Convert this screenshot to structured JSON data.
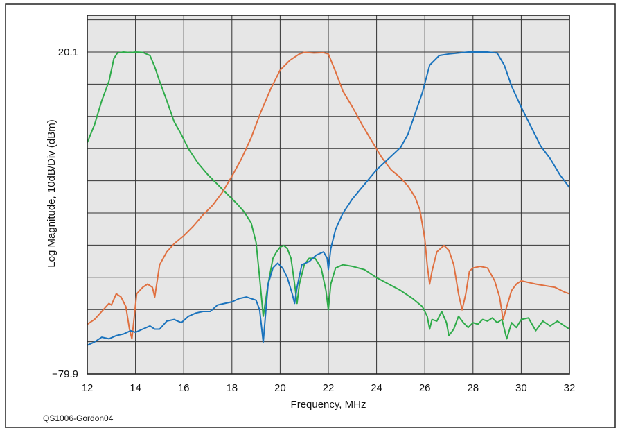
{
  "chart_data": {
    "type": "line",
    "title": "",
    "xlabel": "Frequency, MHz",
    "ylabel": "Log Magnitude, 10dB/Div (dBm)",
    "xlim": [
      12,
      32
    ],
    "ylim": [
      -79.9,
      20.1
    ],
    "x_ticks": [
      12,
      14,
      16,
      18,
      20,
      22,
      24,
      26,
      28,
      30,
      32
    ],
    "y_tick_labels": [
      "20.1",
      "−79.9"
    ],
    "y_tick_values": [
      20.1,
      -79.9
    ],
    "grid": true,
    "plot_background": "#e6e6e6",
    "series": [
      {
        "color": "#2eab49",
        "x": [
          12.0,
          12.3,
          12.6,
          12.9,
          13.1,
          13.25,
          13.5,
          13.8,
          14.0,
          14.3,
          14.6,
          14.8,
          15.0,
          15.3,
          15.6,
          15.9,
          16.2,
          16.6,
          17.0,
          17.4,
          17.8,
          18.2,
          18.5,
          18.8,
          19.0,
          19.15,
          19.3,
          19.5,
          19.7,
          19.85,
          20.0,
          20.15,
          20.3,
          20.45,
          20.6,
          20.7,
          20.8,
          21.0,
          21.2,
          21.45,
          21.7,
          21.9,
          22.0,
          22.1,
          22.3,
          22.6,
          23.0,
          23.5,
          24.0,
          24.5,
          25.0,
          25.5,
          25.9,
          26.1,
          26.2,
          26.3,
          26.5,
          26.7,
          26.9,
          27.0,
          27.2,
          27.4,
          27.6,
          27.8,
          28.0,
          28.2,
          28.4,
          28.6,
          28.8,
          29.0,
          29.2,
          29.4,
          29.6,
          29.8,
          30.0,
          30.3,
          30.6,
          30.9,
          31.2,
          31.5,
          31.8,
          32.0
        ],
        "values": [
          -8.0,
          -2.5,
          5.0,
          11.0,
          18.0,
          19.8,
          20.1,
          19.9,
          20.1,
          20.0,
          19.0,
          15.5,
          11.0,
          5.0,
          -1.5,
          -5.5,
          -10.0,
          -14.5,
          -18.0,
          -21.0,
          -24.0,
          -27.0,
          -29.5,
          -33.0,
          -39.0,
          -50.0,
          -62.0,
          -52.0,
          -44.0,
          -42.0,
          -40.5,
          -40.0,
          -41.0,
          -44.0,
          -52.0,
          -58.0,
          -52.0,
          -46.0,
          -44.0,
          -44.0,
          -47.0,
          -54.0,
          -60.0,
          -52.0,
          -47.0,
          -46.0,
          -46.5,
          -47.5,
          -50.0,
          -52.0,
          -54.0,
          -56.5,
          -59.0,
          -62.0,
          -66.0,
          -63.0,
          -63.5,
          -60.5,
          -64.0,
          -68.0,
          -66.0,
          -62.0,
          -64.0,
          -65.5,
          -64.0,
          -64.5,
          -63.0,
          -63.5,
          -62.5,
          -64.0,
          -63.0,
          -69.0,
          -64.0,
          -65.5,
          -63.0,
          -62.5,
          -66.5,
          -63.5,
          -65.0,
          -63.5,
          -65.0,
          -66.0
        ]
      },
      {
        "color": "#e07040",
        "x": [
          12.0,
          12.3,
          12.6,
          12.9,
          13.0,
          13.2,
          13.4,
          13.6,
          13.75,
          13.85,
          13.95,
          14.05,
          14.3,
          14.5,
          14.7,
          14.8,
          15.0,
          15.3,
          15.6,
          16.0,
          16.4,
          16.8,
          17.2,
          17.6,
          18.0,
          18.4,
          18.8,
          19.2,
          19.6,
          20.0,
          20.4,
          20.8,
          21.0,
          21.4,
          21.8,
          22.0,
          22.3,
          22.6,
          23.0,
          23.4,
          23.8,
          24.2,
          24.6,
          25.0,
          25.3,
          25.6,
          25.8,
          26.0,
          26.1,
          26.2,
          26.3,
          26.5,
          26.8,
          27.0,
          27.2,
          27.4,
          27.55,
          27.7,
          27.85,
          28.0,
          28.3,
          28.6,
          28.9,
          29.1,
          29.25,
          29.4,
          29.6,
          29.8,
          30.0,
          30.3,
          30.6,
          31.0,
          31.4,
          31.8,
          32.0
        ],
        "values": [
          -64.5,
          -63.0,
          -60.5,
          -58.0,
          -58.5,
          -55.0,
          -56.0,
          -59.0,
          -66.0,
          -69.0,
          -62.0,
          -55.0,
          -53.0,
          -52.0,
          -53.0,
          -56.0,
          -46.0,
          -42.0,
          -39.5,
          -37.0,
          -34.0,
          -30.5,
          -27.5,
          -23.5,
          -18.5,
          -13.0,
          -6.5,
          1.5,
          8.5,
          14.5,
          17.5,
          19.5,
          20.0,
          19.8,
          19.9,
          19.5,
          14.0,
          8.0,
          3.0,
          -2.5,
          -7.5,
          -12.5,
          -16.5,
          -19.0,
          -21.5,
          -25.0,
          -29.0,
          -38.0,
          -46.0,
          -52.0,
          -48.0,
          -42.0,
          -40.0,
          -41.5,
          -46.0,
          -55.0,
          -60.0,
          -55.0,
          -48.0,
          -47.0,
          -46.5,
          -47.0,
          -51.0,
          -56.0,
          -63.0,
          -59.0,
          -54.0,
          -52.0,
          -51.0,
          -51.5,
          -52.0,
          -52.5,
          -53.0,
          -54.5,
          -55.0
        ]
      },
      {
        "color": "#1a73bd",
        "x": [
          12.0,
          12.3,
          12.6,
          12.9,
          13.2,
          13.5,
          13.8,
          14.0,
          14.3,
          14.6,
          14.8,
          15.0,
          15.3,
          15.6,
          15.9,
          16.2,
          16.5,
          16.8,
          17.1,
          17.4,
          17.7,
          18.0,
          18.3,
          18.6,
          18.8,
          19.0,
          19.15,
          19.3,
          19.5,
          19.7,
          19.9,
          20.1,
          20.3,
          20.5,
          20.6,
          20.7,
          20.9,
          21.2,
          21.5,
          21.8,
          21.95,
          22.0,
          22.1,
          22.3,
          22.6,
          23.0,
          23.5,
          24.0,
          24.5,
          25.0,
          25.3,
          25.6,
          25.9,
          26.2,
          26.6,
          27.0,
          27.4,
          27.8,
          28.2,
          28.6,
          29.0,
          29.3,
          29.6,
          30.0,
          30.4,
          30.8,
          31.2,
          31.6,
          32.0
        ],
        "values": [
          -71.0,
          -70.0,
          -68.5,
          -69.0,
          -68.0,
          -67.5,
          -66.5,
          -67.0,
          -66.0,
          -65.0,
          -66.0,
          -66.0,
          -63.5,
          -63.0,
          -64.0,
          -62.0,
          -61.0,
          -60.5,
          -60.5,
          -58.5,
          -58.0,
          -57.5,
          -56.5,
          -56.0,
          -56.5,
          -57.0,
          -60.0,
          -70.0,
          -52.0,
          -47.0,
          -45.5,
          -47.0,
          -50.0,
          -55.0,
          -58.0,
          -53.0,
          -46.0,
          -45.0,
          -43.0,
          -42.0,
          -44.0,
          -47.5,
          -41.0,
          -35.0,
          -30.0,
          -25.5,
          -21.0,
          -16.5,
          -13.0,
          -9.5,
          -5.5,
          1.0,
          7.5,
          16.0,
          19.0,
          19.5,
          19.8,
          20.1,
          20.1,
          20.1,
          19.8,
          16.0,
          9.5,
          3.0,
          -3.0,
          -9.0,
          -13.0,
          -18.0,
          -22.0
        ]
      }
    ]
  },
  "credit": "QS1006-Gordon04"
}
